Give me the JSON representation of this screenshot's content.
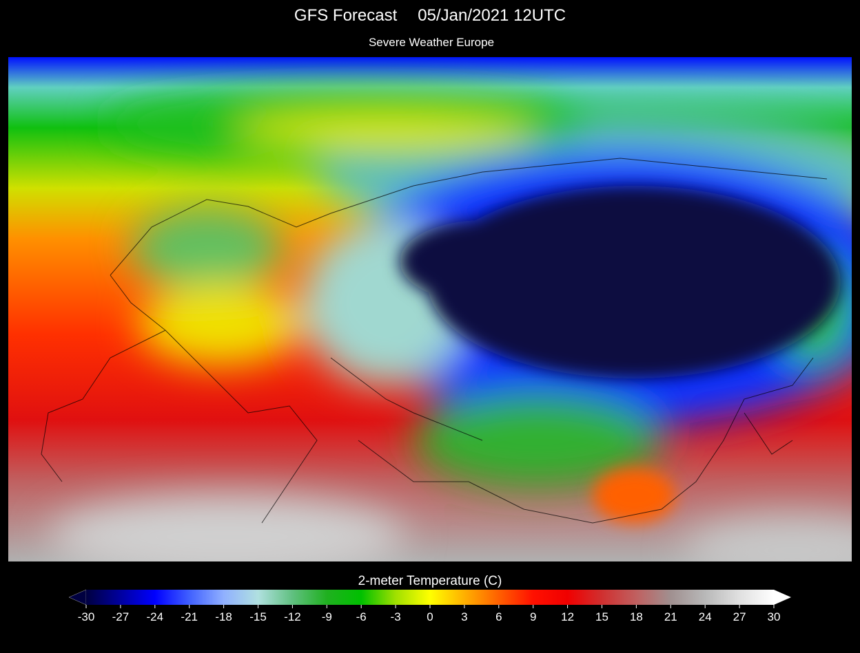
{
  "header": {
    "title": "GFS Forecast",
    "date": "05/Jan/2021 12UTC",
    "subtitle": "Severe Weather Europe"
  },
  "colorbar": {
    "label": "2-meter Temperature (C)",
    "ticks": [
      -30,
      -27,
      -24,
      -21,
      -18,
      -15,
      -12,
      -9,
      -6,
      -3,
      0,
      3,
      6,
      9,
      12,
      15,
      18,
      21,
      24,
      27,
      30
    ]
  }
}
